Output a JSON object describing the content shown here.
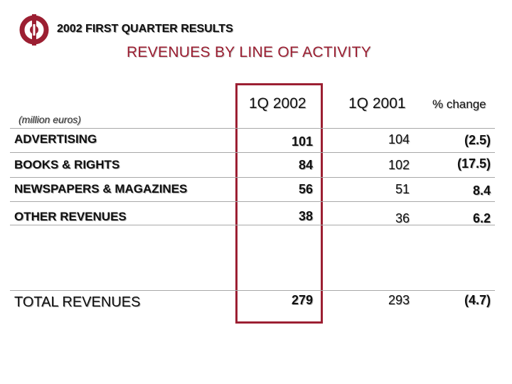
{
  "header": {
    "title": "2002 FIRST QUARTER RESULTS"
  },
  "subtitle": "REVENUES BY LINE OF ACTIVITY",
  "unit_label": "(million euros)",
  "columns": [
    "1Q 2002",
    "1Q 2001",
    "% change"
  ],
  "rows": [
    {
      "label": "ADVERTISING",
      "q1_2002": "101",
      "q1_2001": "104",
      "change": "(2.5)"
    },
    {
      "label": "BOOKS & RIGHTS",
      "q1_2002": "84",
      "q1_2001": "102",
      "change": "(17.5)"
    },
    {
      "label": "NEWSPAPERS & MAGAZINES",
      "q1_2002": "56",
      "q1_2001": "51",
      "change": "8.4"
    },
    {
      "label": "OTHER REVENUES",
      "q1_2002": "38",
      "q1_2001": "36",
      "change": "6.2"
    }
  ],
  "total": {
    "label": "TOTAL REVENUES",
    "q1_2002": "279",
    "q1_2001": "293",
    "change": "(4.7)"
  },
  "colors": {
    "accent": "#9c1f32",
    "rule": "#a8a8a8"
  }
}
